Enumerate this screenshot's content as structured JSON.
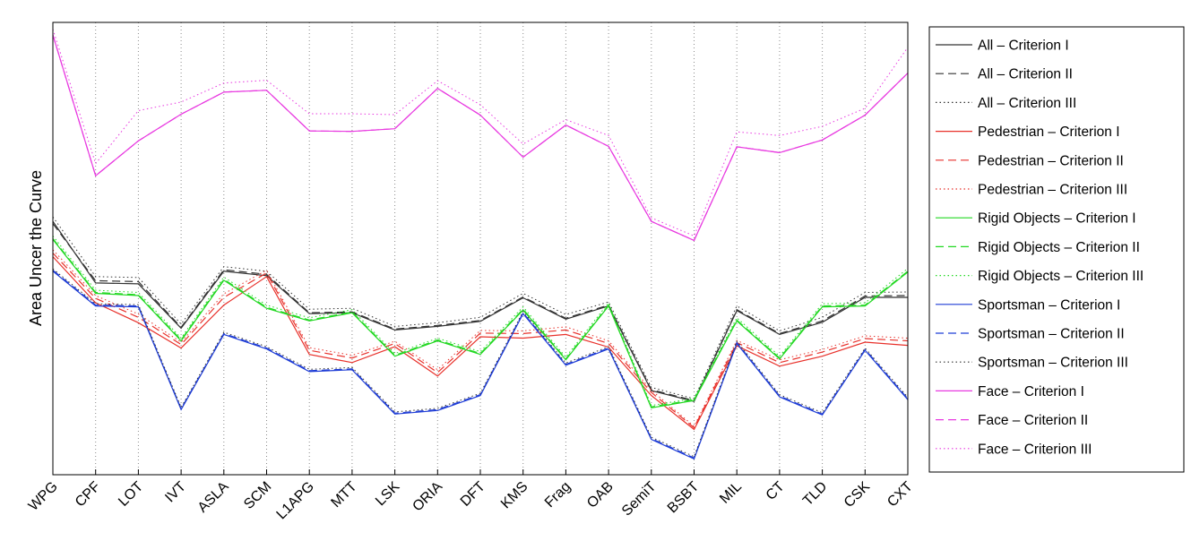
{
  "chart_data": {
    "type": "line",
    "title": "",
    "xlabel": "",
    "ylabel": "Area Uncer the Curve",
    "ylim": [
      0,
      1
    ],
    "y_ticks_shown": false,
    "grid": "vertical dotted",
    "legend_placement": "outside-right",
    "categories": [
      "WPG",
      "CPF",
      "LOT",
      "IVT",
      "ASLA",
      "SCM",
      "L1APG",
      "MTT",
      "LSK",
      "ORIA",
      "DFT",
      "KMS",
      "Frag",
      "OAB",
      "SemiT",
      "BSBT",
      "MIL",
      "CT",
      "TLD",
      "CSK",
      "CXT"
    ],
    "series": [
      {
        "name": "All – Criterion I",
        "color": "#333333",
        "dash": "solid",
        "values": [
          0.56,
          0.424,
          0.422,
          0.324,
          0.45,
          0.44,
          0.356,
          0.358,
          0.32,
          0.328,
          0.339,
          0.391,
          0.344,
          0.373,
          0.186,
          0.162,
          0.363,
          0.31,
          0.337,
          0.392,
          0.392
        ]
      },
      {
        "name": "All – Criterion II",
        "color": "#333333",
        "dash": "dashed",
        "values": [
          0.555,
          0.429,
          0.427,
          0.326,
          0.453,
          0.443,
          0.358,
          0.36,
          0.322,
          0.33,
          0.341,
          0.393,
          0.346,
          0.375,
          0.188,
          0.164,
          0.365,
          0.312,
          0.34,
          0.395,
          0.396
        ]
      },
      {
        "name": "All – Criterion III",
        "color": "#333333",
        "dash": "dotted",
        "values": [
          0.57,
          0.438,
          0.436,
          0.333,
          0.46,
          0.45,
          0.366,
          0.368,
          0.328,
          0.336,
          0.348,
          0.401,
          0.354,
          0.382,
          0.193,
          0.168,
          0.373,
          0.318,
          0.348,
          0.403,
          0.404
        ]
      },
      {
        "name": "Pedestrian – Criterion I",
        "color": "#e8312b",
        "dash": "solid",
        "values": [
          0.482,
          0.38,
          0.336,
          0.28,
          0.375,
          0.438,
          0.266,
          0.248,
          0.283,
          0.218,
          0.305,
          0.302,
          0.31,
          0.282,
          0.175,
          0.1,
          0.285,
          0.24,
          0.262,
          0.293,
          0.286
        ]
      },
      {
        "name": "Pedestrian – Criterion II",
        "color": "#e8312b",
        "dash": "dashed",
        "values": [
          0.49,
          0.39,
          0.348,
          0.288,
          0.392,
          0.446,
          0.275,
          0.258,
          0.29,
          0.226,
          0.313,
          0.312,
          0.32,
          0.29,
          0.182,
          0.104,
          0.292,
          0.248,
          0.271,
          0.301,
          0.296
        ]
      },
      {
        "name": "Pedestrian – Criterion III",
        "color": "#e8312b",
        "dash": "dotted",
        "values": [
          0.497,
          0.396,
          0.355,
          0.293,
          0.4,
          0.452,
          0.281,
          0.264,
          0.295,
          0.232,
          0.319,
          0.318,
          0.327,
          0.296,
          0.187,
          0.107,
          0.297,
          0.254,
          0.277,
          0.307,
          0.302
        ]
      },
      {
        "name": "Rigid Objects – Criterion I",
        "color": "#22d822",
        "dash": "solid",
        "values": [
          0.52,
          0.401,
          0.396,
          0.296,
          0.43,
          0.368,
          0.34,
          0.358,
          0.262,
          0.296,
          0.266,
          0.364,
          0.254,
          0.373,
          0.148,
          0.164,
          0.34,
          0.256,
          0.371,
          0.373,
          0.448
        ]
      },
      {
        "name": "Rigid Objects – Criterion II",
        "color": "#22d822",
        "dash": "dashed",
        "values": [
          0.522,
          0.403,
          0.398,
          0.298,
          0.432,
          0.37,
          0.342,
          0.36,
          0.264,
          0.298,
          0.268,
          0.366,
          0.256,
          0.375,
          0.15,
          0.166,
          0.342,
          0.258,
          0.373,
          0.375,
          0.45
        ]
      },
      {
        "name": "Rigid Objects – Criterion III",
        "color": "#22d822",
        "dash": "dotted",
        "values": [
          0.528,
          0.408,
          0.403,
          0.302,
          0.437,
          0.375,
          0.347,
          0.365,
          0.268,
          0.302,
          0.272,
          0.371,
          0.26,
          0.38,
          0.153,
          0.169,
          0.347,
          0.262,
          0.378,
          0.38,
          0.456
        ]
      },
      {
        "name": "Sportsman – Criterion I",
        "color": "#1f3dd6",
        "dash": "solid",
        "values": [
          0.45,
          0.373,
          0.371,
          0.144,
          0.31,
          0.278,
          0.228,
          0.232,
          0.134,
          0.142,
          0.175,
          0.356,
          0.242,
          0.278,
          0.078,
          0.035,
          0.29,
          0.172,
          0.132,
          0.275,
          0.166
        ]
      },
      {
        "name": "Sportsman – Criterion II",
        "color": "#1f3dd6",
        "dash": "dashed",
        "values": [
          0.452,
          0.375,
          0.373,
          0.146,
          0.312,
          0.28,
          0.23,
          0.234,
          0.136,
          0.144,
          0.177,
          0.358,
          0.244,
          0.28,
          0.08,
          0.037,
          0.292,
          0.174,
          0.134,
          0.277,
          0.168
        ]
      },
      {
        "name": "Sportsman – Criterion III",
        "color": "#333333",
        "dash": "dotted",
        "values": [
          0.455,
          0.378,
          0.376,
          0.149,
          0.315,
          0.283,
          0.233,
          0.237,
          0.139,
          0.147,
          0.18,
          0.361,
          0.247,
          0.283,
          0.083,
          0.04,
          0.295,
          0.177,
          0.137,
          0.28,
          0.171
        ]
      },
      {
        "name": "Face – Criterion I",
        "color": "#e83ae0",
        "dash": "solid",
        "values": [
          0.972,
          0.661,
          0.738,
          0.797,
          0.846,
          0.85,
          0.76,
          0.759,
          0.765,
          0.854,
          0.795,
          0.702,
          0.773,
          0.726,
          0.56,
          0.518,
          0.725,
          0.712,
          0.74,
          0.795,
          0.888
        ]
      },
      {
        "name": "Face – Criterion II",
        "color": "#e83ae0",
        "dash": "dashed",
        "values": [
          0.972,
          0.661,
          0.738,
          0.797,
          0.846,
          0.85,
          0.76,
          0.759,
          0.765,
          0.854,
          0.795,
          0.702,
          0.773,
          0.726,
          0.56,
          0.518,
          0.725,
          0.712,
          0.74,
          0.795,
          0.888
        ]
      },
      {
        "name": "Face – Criterion III",
        "color": "#e83ae0",
        "dash": "dotted",
        "values": [
          0.985,
          0.688,
          0.805,
          0.824,
          0.866,
          0.872,
          0.798,
          0.798,
          0.796,
          0.871,
          0.818,
          0.731,
          0.785,
          0.75,
          0.568,
          0.528,
          0.758,
          0.75,
          0.77,
          0.81,
          0.945
        ]
      }
    ]
  }
}
